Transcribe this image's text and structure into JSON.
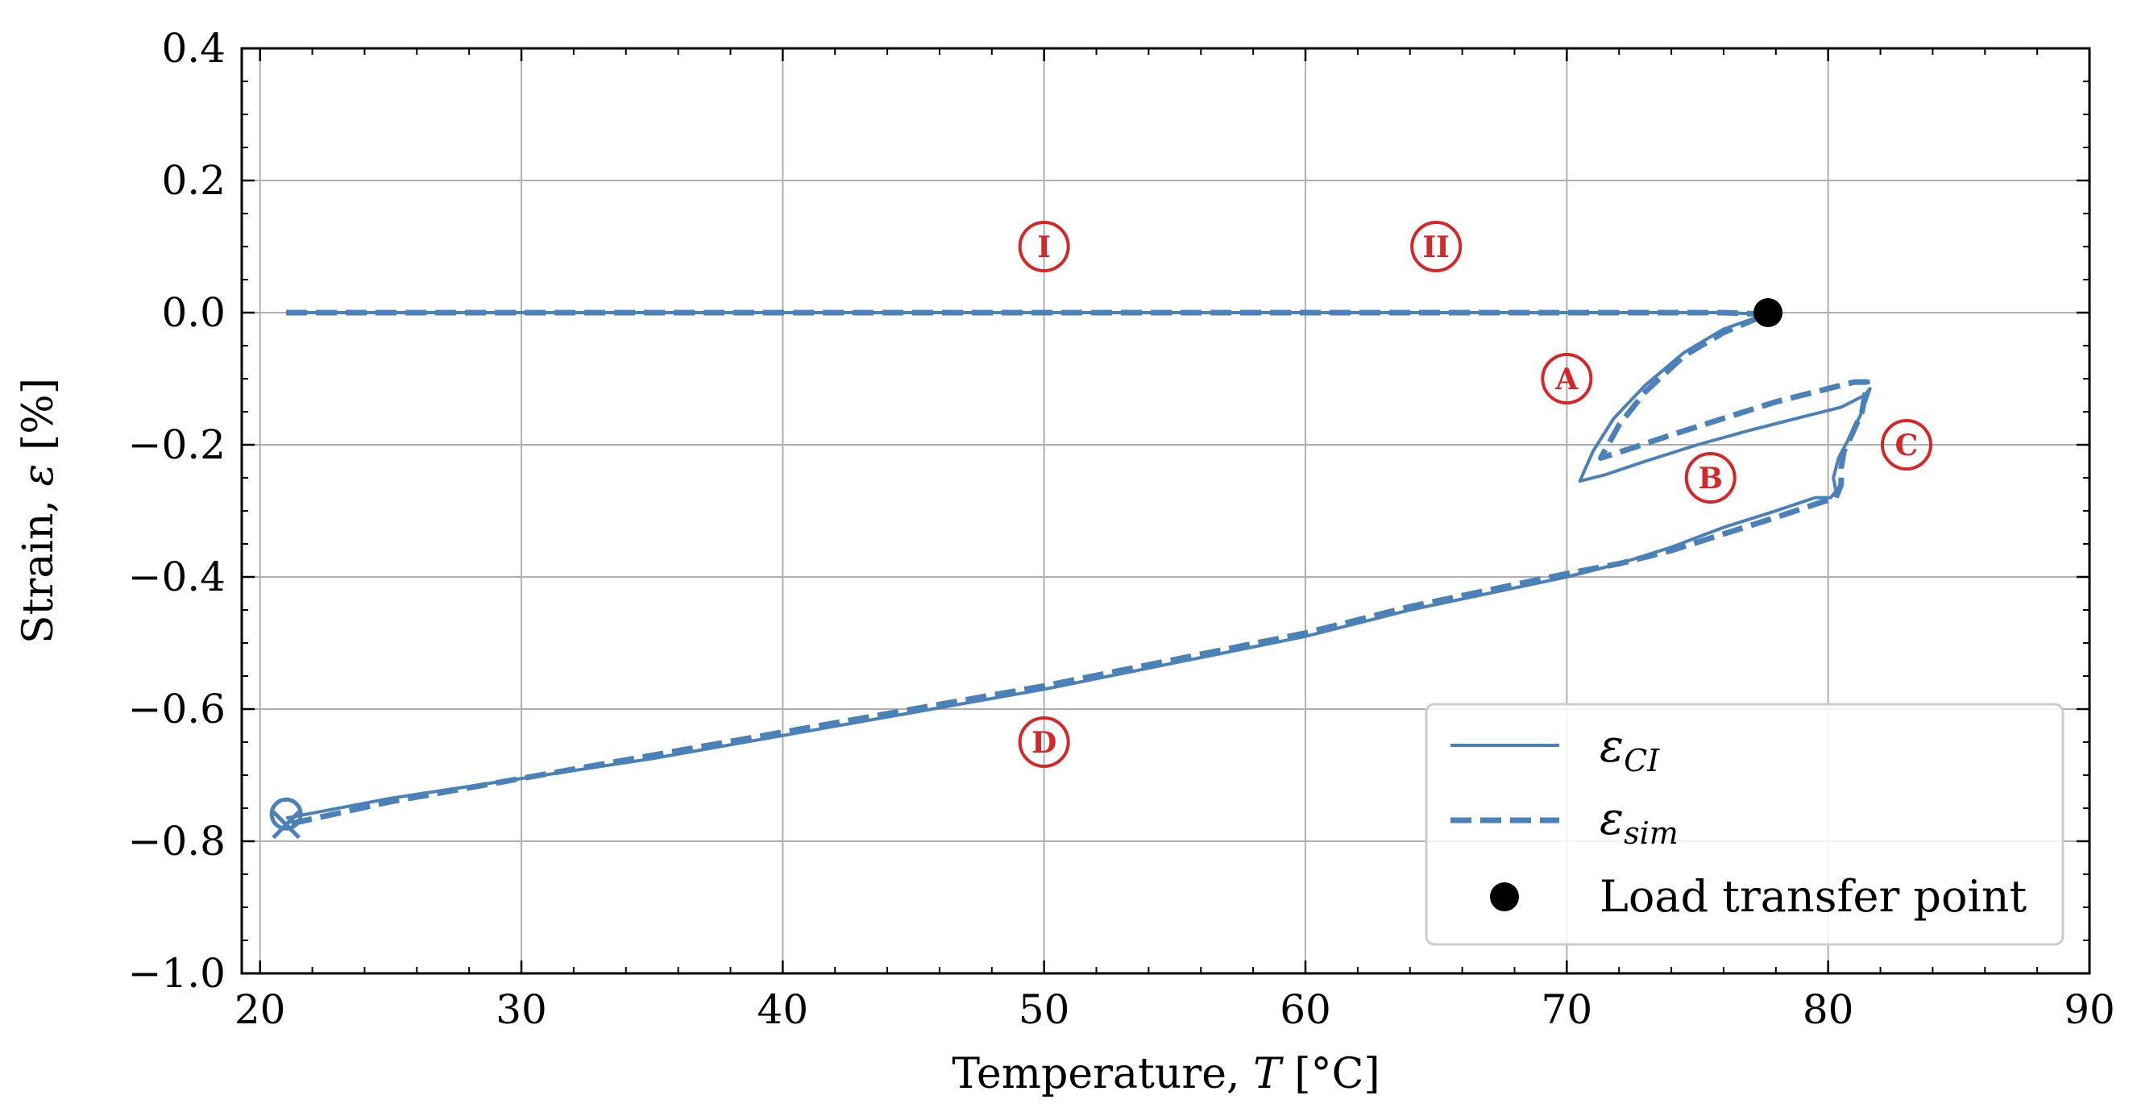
{
  "chart_data": {
    "type": "line",
    "xlabel": "Temperature, T [°C]",
    "xlabel_parts": {
      "pre": "Temperature, ",
      "var": "T",
      "post": " [°C]"
    },
    "ylabel": "Strain, ε [%]",
    "ylabel_parts": {
      "pre": "Strain, ",
      "var": "ε",
      "post": " [%]"
    },
    "xlim": [
      19.3,
      90
    ],
    "ylim": [
      -1.0,
      0.4
    ],
    "xticks": [
      20,
      30,
      40,
      50,
      60,
      70,
      80,
      90
    ],
    "yticks": [
      0.4,
      0.2,
      0.0,
      -0.2,
      -0.4,
      -0.6,
      -0.8,
      -1.0
    ],
    "ytick_labels": [
      "0.4",
      "0.2",
      "0.0",
      "−0.2",
      "−0.4",
      "−0.6",
      "−0.8",
      "−1.0"
    ],
    "grid": true,
    "colors": {
      "series": "#4a81b9",
      "annotation": "#d62728",
      "point": "#000000",
      "grid": "#b0b0b0"
    },
    "series": [
      {
        "name": "ε_CI",
        "symbol": "ε",
        "subscript": "CI",
        "style": "solid",
        "x": [
          21,
          30,
          40,
          50,
          60,
          65,
          70,
          74,
          76,
          77.3,
          77.7,
          77.2,
          76,
          74.5,
          73,
          71.8,
          71,
          70.5,
          71.5,
          73,
          75,
          77,
          79,
          80.5,
          81.4,
          81.6,
          81.3,
          80.8,
          80.4,
          80.2,
          80.3,
          80.1,
          79.8,
          79.5,
          78,
          76,
          74,
          72,
          70,
          67,
          64,
          60,
          55,
          50,
          45,
          40,
          35,
          30,
          25,
          21
        ],
        "y": [
          0.0,
          0.0,
          0.0,
          0.0,
          0.0,
          0.0,
          0.0,
          0.0,
          0.0,
          -0.002,
          -0.002,
          -0.008,
          -0.025,
          -0.06,
          -0.11,
          -0.16,
          -0.21,
          -0.255,
          -0.245,
          -0.225,
          -0.2,
          -0.178,
          -0.158,
          -0.143,
          -0.125,
          -0.115,
          -0.15,
          -0.19,
          -0.22,
          -0.25,
          -0.27,
          -0.28,
          -0.28,
          -0.28,
          -0.3,
          -0.325,
          -0.355,
          -0.38,
          -0.4,
          -0.425,
          -0.45,
          -0.49,
          -0.53,
          -0.57,
          -0.605,
          -0.64,
          -0.675,
          -0.705,
          -0.735,
          -0.765
        ]
      },
      {
        "name": "ε_sim",
        "symbol": "ε",
        "subscript": "sim",
        "style": "dashed",
        "x": [
          21,
          30,
          40,
          50,
          60,
          65,
          70,
          74,
          76,
          77.3,
          77.7,
          77.2,
          76,
          74.5,
          73,
          72,
          71.3,
          72.5,
          74,
          76,
          78,
          80,
          81,
          81.5,
          81.3,
          80.9,
          80.6,
          80.5,
          80.5,
          80.3,
          79.5,
          78,
          76,
          74,
          72,
          70,
          67,
          64,
          60,
          55,
          50,
          45,
          40,
          35,
          30,
          25,
          21
        ],
        "y": [
          0.0,
          0.0,
          0.0,
          0.0,
          0.0,
          0.0,
          0.0,
          0.0,
          0.0,
          -0.002,
          -0.002,
          -0.01,
          -0.03,
          -0.065,
          -0.12,
          -0.17,
          -0.22,
          -0.205,
          -0.185,
          -0.16,
          -0.135,
          -0.115,
          -0.105,
          -0.105,
          -0.15,
          -0.185,
          -0.21,
          -0.235,
          -0.26,
          -0.28,
          -0.29,
          -0.31,
          -0.335,
          -0.36,
          -0.38,
          -0.395,
          -0.42,
          -0.445,
          -0.485,
          -0.525,
          -0.565,
          -0.6,
          -0.635,
          -0.67,
          -0.705,
          -0.74,
          -0.775
        ]
      }
    ],
    "markers": [
      {
        "name": "Load transfer point",
        "x": 77.7,
        "y": 0.0,
        "shape": "filled-circle"
      },
      {
        "name": "start",
        "x": 21,
        "y": -0.765,
        "shape": "open-circle"
      },
      {
        "name": "end",
        "x": 21,
        "y": -0.775,
        "shape": "x"
      }
    ],
    "annotations": [
      {
        "label": "I",
        "x": 50,
        "y": 0.1
      },
      {
        "label": "II",
        "x": 65,
        "y": 0.1
      },
      {
        "label": "A",
        "x": 70,
        "y": -0.1
      },
      {
        "label": "B",
        "x": 75.5,
        "y": -0.25
      },
      {
        "label": "C",
        "x": 83,
        "y": -0.2
      },
      {
        "label": "D",
        "x": 50,
        "y": -0.65
      }
    ],
    "legend": {
      "position": "lower-right",
      "entries": [
        {
          "symbol": "ε",
          "subscript": "CI",
          "style": "solid"
        },
        {
          "symbol": "ε",
          "subscript": "sim",
          "style": "dashed"
        },
        {
          "text": "Load transfer point",
          "style": "point"
        }
      ]
    }
  }
}
